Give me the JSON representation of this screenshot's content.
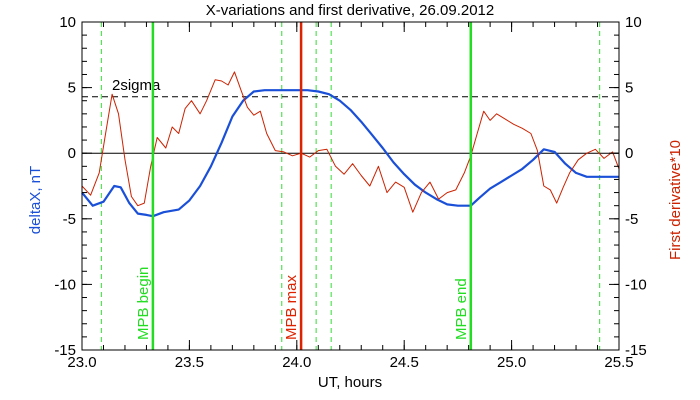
{
  "chart_data": {
    "type": "line",
    "title": "X-variations and first derivative, 26.09.2012",
    "xlabel": "UT, hours",
    "ylabel_left": "deltaX, nT",
    "ylabel_right": "First derivative*10",
    "xlim": [
      23.0,
      25.5
    ],
    "ylim_left": [
      -15,
      10
    ],
    "ylim_right": [
      -15,
      10
    ],
    "x_ticks": [
      "23.0",
      "23.5",
      "24.0",
      "24.5",
      "25.0",
      "25.5"
    ],
    "x_tick_values": [
      23.0,
      23.5,
      24.0,
      24.5,
      25.0,
      25.5
    ],
    "y_ticks": [
      "-15",
      "-10",
      "-5",
      "0",
      "5",
      "10"
    ],
    "y_tick_values": [
      -15,
      -10,
      -5,
      0,
      5,
      10
    ],
    "grid": false,
    "colors": {
      "deltaX": "#1a4fd8",
      "derivative": "#cc2200",
      "mpb": "#22dd22",
      "mpb_max": "#dd2200",
      "dashed_green": "#33dd33"
    },
    "reference_lines": {
      "zero": 0,
      "two_sigma": {
        "value": 4.3,
        "label": "2sigma"
      }
    },
    "vertical_markers": [
      {
        "x": 23.33,
        "label": "MPB begin",
        "color": "#22dd22"
      },
      {
        "x": 24.02,
        "label": "MPB max",
        "color": "#dd2200"
      },
      {
        "x": 24.81,
        "label": "MPB end",
        "color": "#22dd22"
      }
    ],
    "dashed_verticals": [
      23.09,
      23.93,
      24.09,
      24.16,
      25.41
    ],
    "series": [
      {
        "axis": "left",
        "color": "#1a4fd8",
        "x": [
          23.0,
          23.05,
          23.1,
          23.15,
          23.18,
          23.22,
          23.26,
          23.3,
          23.33,
          23.38,
          23.45,
          23.5,
          23.55,
          23.6,
          23.65,
          23.7,
          23.75,
          23.8,
          23.85,
          23.9,
          23.95,
          24.0,
          24.05,
          24.1,
          24.15,
          24.2,
          24.25,
          24.3,
          24.35,
          24.4,
          24.45,
          24.5,
          24.55,
          24.6,
          24.65,
          24.7,
          24.75,
          24.81,
          24.85,
          24.9,
          24.95,
          25.0,
          25.05,
          25.1,
          25.15,
          25.2,
          25.25,
          25.3,
          25.35,
          25.4,
          25.45,
          25.5
        ],
        "y": [
          -3.0,
          -4.0,
          -3.7,
          -2.5,
          -2.6,
          -3.8,
          -4.6,
          -4.7,
          -4.8,
          -4.5,
          -4.3,
          -3.6,
          -2.5,
          -1.0,
          0.8,
          2.8,
          4.0,
          4.7,
          4.8,
          4.8,
          4.8,
          4.8,
          4.8,
          4.7,
          4.5,
          4.0,
          3.3,
          2.4,
          1.4,
          0.4,
          -0.7,
          -1.6,
          -2.4,
          -3.0,
          -3.5,
          -3.9,
          -4.0,
          -4.0,
          -3.4,
          -2.7,
          -2.2,
          -1.7,
          -1.2,
          -0.5,
          0.3,
          0.1,
          -0.8,
          -1.5,
          -1.8,
          -1.8,
          -1.8,
          -1.8
        ]
      },
      {
        "axis": "right",
        "color": "#cc2200",
        "x": [
          23.0,
          23.04,
          23.08,
          23.11,
          23.14,
          23.17,
          23.2,
          23.23,
          23.26,
          23.29,
          23.32,
          23.35,
          23.39,
          23.42,
          23.45,
          23.48,
          23.51,
          23.55,
          23.58,
          23.62,
          23.65,
          23.68,
          23.71,
          23.74,
          23.77,
          23.8,
          23.83,
          23.86,
          23.9,
          23.94,
          23.98,
          24.02,
          24.06,
          24.1,
          24.14,
          24.18,
          24.22,
          24.26,
          24.3,
          24.34,
          24.38,
          24.42,
          24.46,
          24.5,
          24.54,
          24.58,
          24.62,
          24.66,
          24.7,
          24.74,
          24.78,
          24.81,
          24.84,
          24.87,
          24.9,
          24.93,
          24.97,
          25.01,
          25.05,
          25.09,
          25.12,
          25.15,
          25.18,
          25.21,
          25.24,
          25.27,
          25.31,
          25.35,
          25.39,
          25.43,
          25.47,
          25.5
        ],
        "y": [
          -2.5,
          -3.2,
          -1.5,
          1.5,
          4.5,
          3.0,
          -0.5,
          -3.3,
          -4.0,
          -3.8,
          -1.0,
          1.2,
          0.4,
          2.0,
          1.5,
          3.4,
          4.0,
          3.0,
          4.0,
          5.6,
          5.5,
          5.2,
          6.2,
          4.8,
          3.5,
          2.9,
          3.2,
          1.5,
          0.2,
          0.1,
          -0.2,
          0.0,
          -0.3,
          0.2,
          0.3,
          -1.0,
          -1.6,
          -0.8,
          -1.7,
          -2.5,
          -1.0,
          -3.0,
          -2.2,
          -2.6,
          -4.5,
          -3.0,
          -2.2,
          -3.5,
          -3.0,
          -2.8,
          -1.5,
          -0.2,
          1.5,
          3.2,
          2.5,
          3.0,
          2.6,
          2.2,
          1.9,
          1.5,
          0.2,
          -2.5,
          -2.8,
          -3.8,
          -2.6,
          -1.5,
          -0.5,
          0.0,
          0.3,
          -0.4,
          0.1,
          -1.2
        ]
      }
    ]
  }
}
